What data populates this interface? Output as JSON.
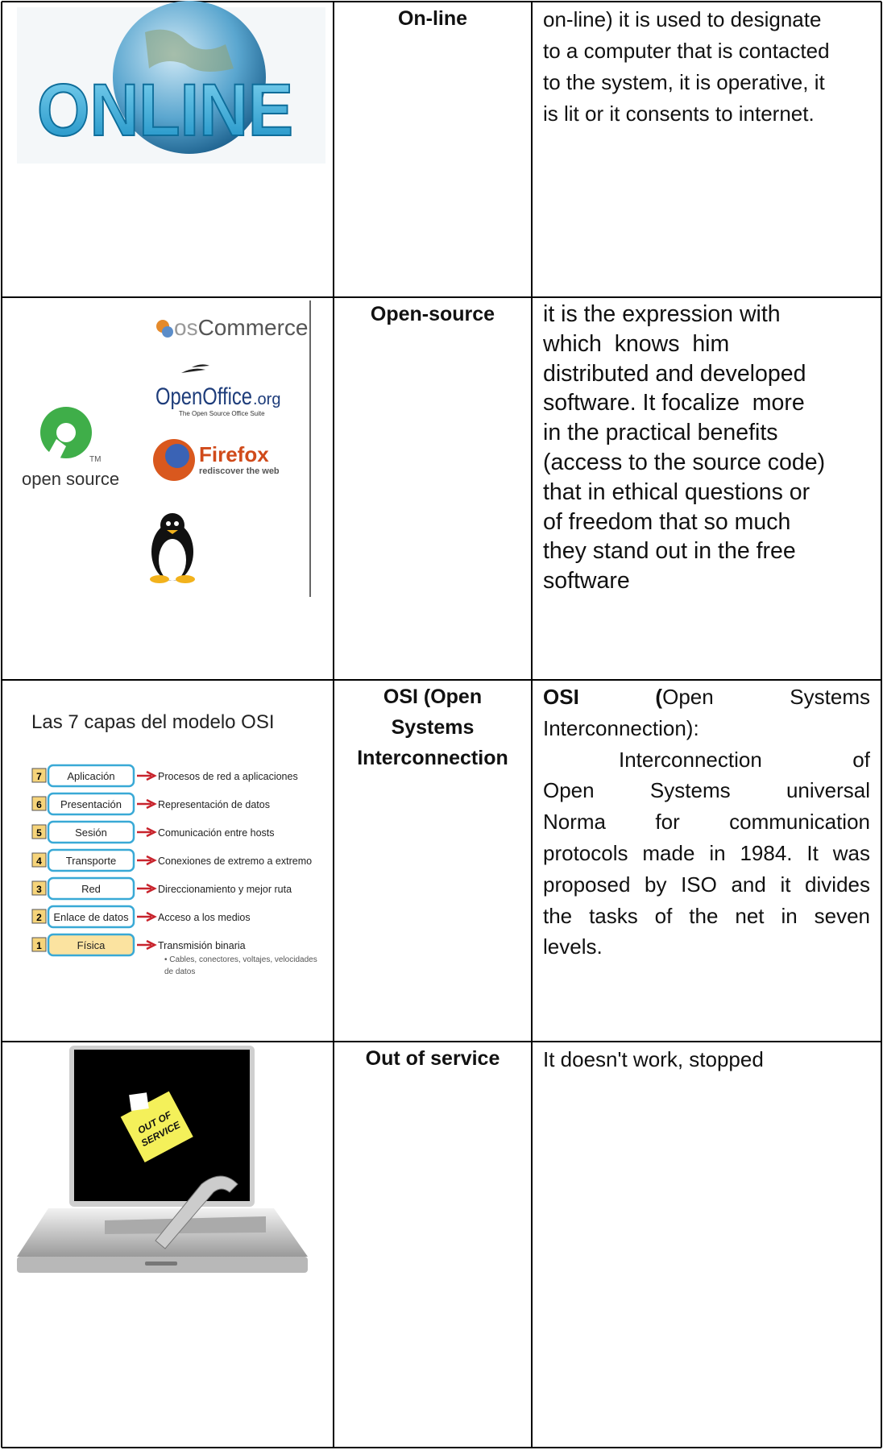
{
  "rows": [
    {
      "image": {
        "word": "ONLINE"
      },
      "term": "On-line",
      "definition": [
        "on-line) it is used to designate",
        "to a computer that is contacted",
        "to the system, it is operative, it",
        "is lit or it consents to internet."
      ]
    },
    {
      "image": {
        "oscommerce_prefix": "os",
        "oscommerce": "Commerce",
        "openoffice": "OpenOffice",
        "openoffice_suffix": ".org",
        "openoffice_tagline": "The Open Source Office Suite",
        "firefox": "Firefox",
        "firefox_tagline": "rediscover the web",
        "open_source": "open source",
        "tm": "TM"
      },
      "term": "Open-source",
      "definition": [
        "it is the expression with",
        "which  knows  him",
        "distributed and developed",
        "software. It focalize  more",
        "in the practical benefits",
        "(access to the source code)",
        "that in ethical questions or",
        "of freedom that so much",
        "they stand out in the free",
        "software"
      ]
    },
    {
      "image": {
        "title": "Las 7 capas del modelo OSI",
        "layers": [
          {
            "number": 7,
            "name": "Aplicación",
            "description": "Procesos de red a aplicaciones"
          },
          {
            "number": 6,
            "name": "Presentación",
            "description": "Representación de datos"
          },
          {
            "number": 5,
            "name": "Sesión",
            "description": "Comunicación entre hosts"
          },
          {
            "number": 4,
            "name": "Transporte",
            "description": "Conexiones de extremo a extremo"
          },
          {
            "number": 3,
            "name": "Red",
            "description": "Direccionamiento y mejor ruta"
          },
          {
            "number": 2,
            "name": "Enlace de datos",
            "description": "Acceso a los medios"
          },
          {
            "number": 1,
            "name": "Física",
            "description": "Transmisión binaria"
          }
        ],
        "note": [
          "• Cables, conectores, voltajes, velocidades",
          "de datos"
        ]
      },
      "term": "OSI (Open Systems Interconnection",
      "definition": {
        "lead": "OSI",
        "paren": "(",
        "lines": [
          "Open Systems",
          "Interconnection):",
          "Interconnection of",
          "Open Systems universal",
          "Norma for communication",
          "protocols made in 1984. It was",
          "proposed by ISO and it divides",
          "the tasks of the net in seven",
          "levels."
        ]
      }
    },
    {
      "image": {
        "note": [
          "OUT OF",
          "SERVICE"
        ]
      },
      "term": "Out of service",
      "definition": [
        "It doesn't work, stopped"
      ]
    }
  ]
}
